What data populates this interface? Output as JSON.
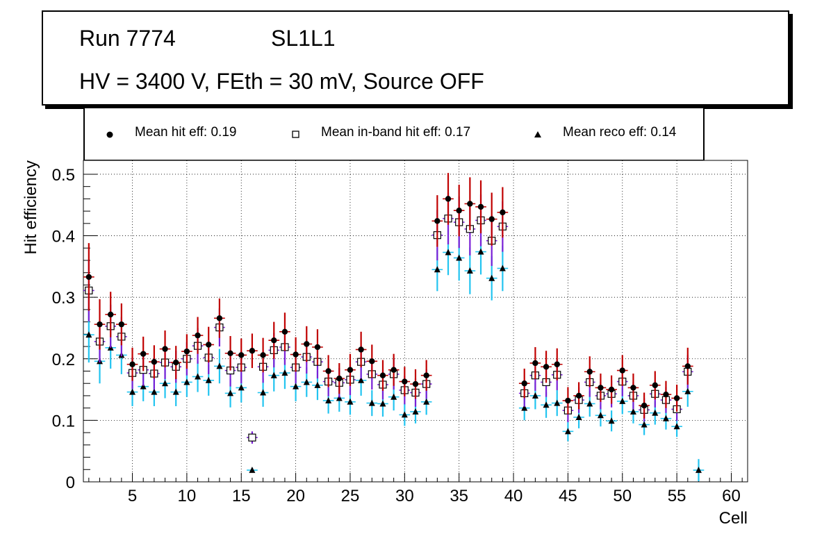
{
  "header": {
    "run_label": "Run 7774",
    "layer_label": "SL1L1",
    "conditions": "HV = 3400 V, FEth = 30 mV, Source OFF"
  },
  "legend": {
    "hit": "Mean hit  eff: 0.19",
    "inband": "Mean in-band hit eff: 0.17",
    "reco": "Mean reco eff: 0.14"
  },
  "colors": {
    "hit_err": "#c00000",
    "inband_err": "#7a1fd6",
    "reco_err": "#22c4f0",
    "grid": "#000000"
  },
  "chart_data": {
    "type": "scatter",
    "title": "",
    "xlabel": "Cell",
    "ylabel": "Hit efficiency",
    "xlim": [
      0.5,
      61.5
    ],
    "ylim": [
      0,
      0.5
    ],
    "xticks": [
      5,
      10,
      15,
      20,
      25,
      30,
      35,
      40,
      45,
      50,
      55,
      60
    ],
    "xtick_labels": [
      "5",
      "10",
      "15",
      "20",
      "25",
      "30",
      "35",
      "40",
      "45",
      "50",
      "55",
      "60"
    ],
    "yticks": [
      0,
      0.1,
      0.2,
      0.3,
      0.4,
      0.5
    ],
    "ytick_labels": [
      "0",
      "0.1",
      "0.2",
      "0.3",
      "0.4",
      "0.5"
    ],
    "grid": true,
    "series": [
      {
        "name": "Mean hit  eff: 0.19",
        "marker": "circle",
        "points": [
          [
            1,
            0.333,
            0.055
          ],
          [
            2,
            0.256,
            0.041
          ],
          [
            3,
            0.272,
            0.037
          ],
          [
            4,
            0.256,
            0.034
          ],
          [
            5,
            0.191,
            0.027
          ],
          [
            6,
            0.208,
            0.028
          ],
          [
            7,
            0.195,
            0.027
          ],
          [
            8,
            0.216,
            0.03
          ],
          [
            9,
            0.194,
            0.027
          ],
          [
            10,
            0.212,
            0.028
          ],
          [
            11,
            0.238,
            0.03
          ],
          [
            12,
            0.223,
            0.029
          ],
          [
            13,
            0.266,
            0.032
          ],
          [
            14,
            0.209,
            0.028
          ],
          [
            15,
            0.206,
            0.027
          ],
          [
            16,
            0.213,
            0.028
          ],
          [
            17,
            0.206,
            0.028
          ],
          [
            18,
            0.23,
            0.03
          ],
          [
            19,
            0.244,
            0.031
          ],
          [
            20,
            0.207,
            0.028
          ],
          [
            21,
            0.224,
            0.029
          ],
          [
            22,
            0.219,
            0.029
          ],
          [
            23,
            0.18,
            0.026
          ],
          [
            24,
            0.168,
            0.025
          ],
          [
            25,
            0.182,
            0.026
          ],
          [
            26,
            0.215,
            0.029
          ],
          [
            27,
            0.196,
            0.027
          ],
          [
            28,
            0.173,
            0.025
          ],
          [
            29,
            0.182,
            0.026
          ],
          [
            30,
            0.163,
            0.024
          ],
          [
            31,
            0.159,
            0.024
          ],
          [
            32,
            0.173,
            0.025
          ],
          [
            33,
            0.424,
            0.042
          ],
          [
            34,
            0.46,
            0.042
          ],
          [
            35,
            0.441,
            0.042
          ],
          [
            36,
            0.452,
            0.043
          ],
          [
            37,
            0.447,
            0.043
          ],
          [
            38,
            0.427,
            0.043
          ],
          [
            39,
            0.438,
            0.041
          ],
          [
            41,
            0.16,
            0.024
          ],
          [
            42,
            0.193,
            0.026
          ],
          [
            43,
            0.187,
            0.026
          ],
          [
            44,
            0.191,
            0.026
          ],
          [
            45,
            0.132,
            0.022
          ],
          [
            46,
            0.14,
            0.022
          ],
          [
            47,
            0.179,
            0.025
          ],
          [
            48,
            0.153,
            0.023
          ],
          [
            49,
            0.15,
            0.023
          ],
          [
            50,
            0.181,
            0.025
          ],
          [
            51,
            0.153,
            0.023
          ],
          [
            52,
            0.124,
            0.021
          ],
          [
            53,
            0.157,
            0.023
          ],
          [
            54,
            0.142,
            0.022
          ],
          [
            55,
            0.136,
            0.022
          ],
          [
            56,
            0.188,
            0.03
          ]
        ]
      },
      {
        "name": "Mean in-band hit eff: 0.17",
        "marker": "open-square",
        "points": [
          [
            1,
            0.311,
            0.05
          ],
          [
            2,
            0.228,
            0.034
          ],
          [
            3,
            0.253,
            0.035
          ],
          [
            4,
            0.236,
            0.032
          ],
          [
            5,
            0.177,
            0.026
          ],
          [
            6,
            0.182,
            0.026
          ],
          [
            7,
            0.176,
            0.026
          ],
          [
            8,
            0.194,
            0.027
          ],
          [
            9,
            0.187,
            0.026
          ],
          [
            10,
            0.2,
            0.027
          ],
          [
            11,
            0.221,
            0.029
          ],
          [
            12,
            0.202,
            0.027
          ],
          [
            13,
            0.251,
            0.031
          ],
          [
            14,
            0.181,
            0.026
          ],
          [
            15,
            0.186,
            0.026
          ],
          [
            16,
            0.072,
            0.01
          ],
          [
            17,
            0.187,
            0.026
          ],
          [
            18,
            0.214,
            0.028
          ],
          [
            19,
            0.219,
            0.029
          ],
          [
            20,
            0.186,
            0.026
          ],
          [
            21,
            0.203,
            0.027
          ],
          [
            22,
            0.195,
            0.027
          ],
          [
            23,
            0.163,
            0.024
          ],
          [
            24,
            0.161,
            0.024
          ],
          [
            25,
            0.166,
            0.025
          ],
          [
            26,
            0.195,
            0.027
          ],
          [
            27,
            0.175,
            0.025
          ],
          [
            28,
            0.158,
            0.024
          ],
          [
            29,
            0.175,
            0.025
          ],
          [
            30,
            0.149,
            0.023
          ],
          [
            31,
            0.145,
            0.023
          ],
          [
            32,
            0.159,
            0.024
          ],
          [
            33,
            0.401,
            0.041
          ],
          [
            34,
            0.428,
            0.042
          ],
          [
            35,
            0.422,
            0.042
          ],
          [
            36,
            0.411,
            0.043
          ],
          [
            37,
            0.425,
            0.042
          ],
          [
            38,
            0.392,
            0.041
          ],
          [
            39,
            0.415,
            0.041
          ],
          [
            41,
            0.144,
            0.022
          ],
          [
            42,
            0.173,
            0.025
          ],
          [
            43,
            0.162,
            0.024
          ],
          [
            44,
            0.174,
            0.025
          ],
          [
            45,
            0.116,
            0.019
          ],
          [
            46,
            0.133,
            0.021
          ],
          [
            47,
            0.162,
            0.024
          ],
          [
            48,
            0.14,
            0.022
          ],
          [
            49,
            0.143,
            0.022
          ],
          [
            50,
            0.163,
            0.024
          ],
          [
            51,
            0.14,
            0.022
          ],
          [
            52,
            0.117,
            0.019
          ],
          [
            53,
            0.143,
            0.022
          ],
          [
            54,
            0.133,
            0.021
          ],
          [
            55,
            0.118,
            0.019
          ],
          [
            56,
            0.179,
            0.027
          ]
        ]
      },
      {
        "name": "Mean reco eff: 0.14",
        "marker": "triangle",
        "points": [
          [
            1,
            0.239,
            0.045
          ],
          [
            2,
            0.196,
            0.036
          ],
          [
            3,
            0.218,
            0.034
          ],
          [
            4,
            0.206,
            0.031
          ],
          [
            5,
            0.146,
            0.023
          ],
          [
            6,
            0.155,
            0.024
          ],
          [
            7,
            0.146,
            0.023
          ],
          [
            8,
            0.16,
            0.024
          ],
          [
            9,
            0.146,
            0.023
          ],
          [
            10,
            0.162,
            0.024
          ],
          [
            11,
            0.171,
            0.025
          ],
          [
            12,
            0.165,
            0.025
          ],
          [
            13,
            0.188,
            0.028
          ],
          [
            14,
            0.144,
            0.023
          ],
          [
            15,
            0.153,
            0.024
          ],
          [
            16,
            0.019,
            0.004
          ],
          [
            17,
            0.145,
            0.023
          ],
          [
            18,
            0.173,
            0.026
          ],
          [
            19,
            0.177,
            0.026
          ],
          [
            20,
            0.155,
            0.024
          ],
          [
            21,
            0.162,
            0.024
          ],
          [
            22,
            0.157,
            0.024
          ],
          [
            23,
            0.132,
            0.021
          ],
          [
            24,
            0.136,
            0.022
          ],
          [
            25,
            0.13,
            0.021
          ],
          [
            26,
            0.165,
            0.025
          ],
          [
            27,
            0.128,
            0.021
          ],
          [
            28,
            0.127,
            0.021
          ],
          [
            29,
            0.138,
            0.022
          ],
          [
            30,
            0.109,
            0.018
          ],
          [
            31,
            0.114,
            0.019
          ],
          [
            32,
            0.13,
            0.021
          ],
          [
            33,
            0.345,
            0.035
          ],
          [
            34,
            0.373,
            0.037
          ],
          [
            35,
            0.364,
            0.037
          ],
          [
            36,
            0.343,
            0.038
          ],
          [
            37,
            0.374,
            0.037
          ],
          [
            38,
            0.331,
            0.036
          ],
          [
            39,
            0.347,
            0.037
          ],
          [
            41,
            0.12,
            0.02
          ],
          [
            42,
            0.14,
            0.022
          ],
          [
            43,
            0.125,
            0.021
          ],
          [
            44,
            0.128,
            0.021
          ],
          [
            45,
            0.082,
            0.016
          ],
          [
            46,
            0.105,
            0.018
          ],
          [
            47,
            0.127,
            0.021
          ],
          [
            48,
            0.108,
            0.018
          ],
          [
            49,
            0.099,
            0.017
          ],
          [
            50,
            0.131,
            0.021
          ],
          [
            51,
            0.114,
            0.019
          ],
          [
            52,
            0.093,
            0.017
          ],
          [
            53,
            0.112,
            0.019
          ],
          [
            54,
            0.103,
            0.018
          ],
          [
            55,
            0.09,
            0.017
          ],
          [
            56,
            0.147,
            0.025
          ],
          [
            57,
            0.019,
            0.018
          ]
        ]
      }
    ]
  }
}
